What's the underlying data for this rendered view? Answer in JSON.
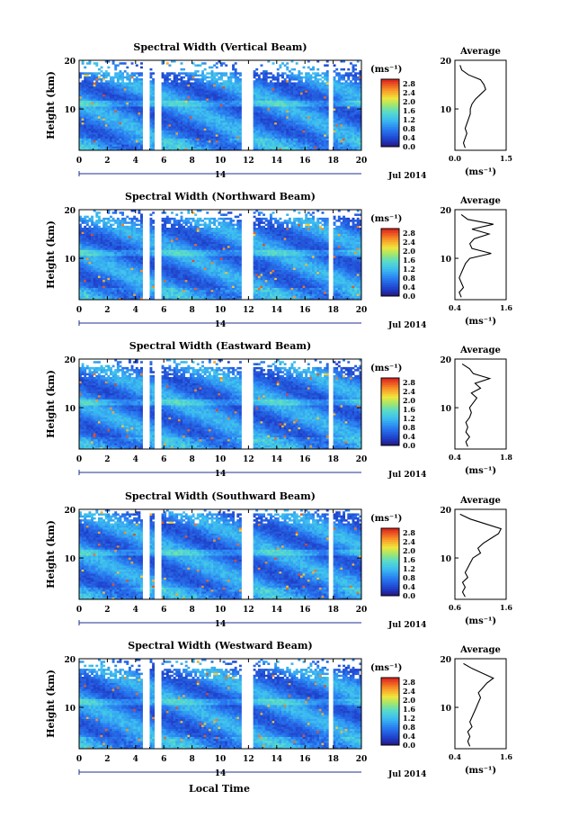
{
  "figure": {
    "date_label": "Jul 2014",
    "day_label": "14",
    "xlabel": "Local Time"
  },
  "chart_data": [
    {
      "type": "heatmap",
      "title": "Spectral Width (Vertical Beam)",
      "ylabel": "Height (km)",
      "x_ticks": [
        0,
        2,
        4,
        6,
        8,
        10,
        12,
        14,
        16,
        18,
        20
      ],
      "y_ticks": [
        10,
        20
      ],
      "xlim": [
        0,
        20
      ],
      "ylim": [
        1.5,
        20
      ],
      "colorbar": {
        "unit": "(ms⁻¹)",
        "ticks": [
          "0.0",
          "0.4",
          "0.8",
          "1.2",
          "1.6",
          "2.0",
          "2.4",
          "2.8"
        ],
        "range": [
          0,
          3.0
        ]
      },
      "data_gaps": [
        [
          4.5,
          5.0
        ],
        [
          5.4,
          5.9
        ],
        [
          11.5,
          12.3
        ],
        [
          17.6,
          18.0
        ]
      ],
      "top_limit_km": 17.5,
      "profile": {
        "title": "Average",
        "xlim": [
          0.0,
          1.5
        ],
        "x_ticks": [
          "0.0",
          "1.5"
        ],
        "xlabel": "(ms⁻¹)",
        "heights": [
          2,
          3,
          4,
          5,
          6,
          7,
          8,
          9,
          10,
          11,
          12,
          13,
          14,
          15,
          16,
          17,
          18,
          19
        ],
        "values": [
          0.3,
          0.25,
          0.3,
          0.35,
          0.3,
          0.35,
          0.4,
          0.45,
          0.45,
          0.5,
          0.6,
          0.75,
          0.9,
          0.85,
          0.75,
          0.4,
          0.2,
          0.15
        ]
      }
    },
    {
      "type": "heatmap",
      "title": "Spectral Width (Northward Beam)",
      "ylabel": "Height (km)",
      "x_ticks": [
        0,
        2,
        4,
        6,
        8,
        10,
        12,
        14,
        16,
        18,
        20
      ],
      "y_ticks": [
        10,
        20
      ],
      "xlim": [
        0,
        20
      ],
      "ylim": [
        1.5,
        20
      ],
      "colorbar": {
        "unit": "(ms⁻¹)",
        "ticks": [
          "0.0",
          "0.4",
          "0.8",
          "1.2",
          "1.6",
          "2.0",
          "2.4",
          "2.8"
        ],
        "range": [
          0,
          3.0
        ]
      },
      "data_gaps": [
        [
          4.5,
          5.0
        ],
        [
          5.4,
          5.9
        ],
        [
          11.5,
          12.3
        ],
        [
          17.6,
          18.0
        ]
      ],
      "top_limit_km": 18.5,
      "profile": {
        "title": "Average",
        "xlim": [
          0.4,
          1.6
        ],
        "x_ticks": [
          "0.4",
          "1.6"
        ],
        "xlabel": "(ms⁻¹)",
        "heights": [
          2,
          3,
          4,
          5,
          6,
          7,
          8,
          9,
          10,
          11,
          12,
          13,
          14,
          15,
          16,
          17,
          18,
          19
        ],
        "values": [
          0.55,
          0.5,
          0.6,
          0.55,
          0.5,
          0.55,
          0.6,
          0.65,
          0.75,
          1.25,
          0.8,
          0.75,
          0.85,
          1.2,
          0.8,
          1.3,
          0.7,
          0.55
        ]
      }
    },
    {
      "type": "heatmap",
      "title": "Spectral Width (Eastward Beam)",
      "ylabel": "Height (km)",
      "x_ticks": [
        0,
        2,
        4,
        6,
        8,
        10,
        12,
        14,
        16,
        18,
        20
      ],
      "y_ticks": [
        10,
        20
      ],
      "xlim": [
        0,
        20
      ],
      "ylim": [
        1.5,
        20
      ],
      "colorbar": {
        "unit": "(ms⁻¹)",
        "ticks": [
          "0.0",
          "0.4",
          "0.8",
          "1.2",
          "1.6",
          "2.0",
          "2.4",
          "2.8"
        ],
        "range": [
          0,
          3.0
        ]
      },
      "data_gaps": [
        [
          4.5,
          5.0
        ],
        [
          5.4,
          5.9
        ],
        [
          11.5,
          12.3
        ],
        [
          17.6,
          18.0
        ]
      ],
      "top_limit_km": 18.5,
      "profile": {
        "title": "Average",
        "xlim": [
          0.4,
          1.8
        ],
        "x_ticks": [
          "0.4",
          "1.8"
        ],
        "xlabel": "(ms⁻¹)",
        "heights": [
          2,
          3,
          4,
          5,
          6,
          7,
          8,
          9,
          10,
          11,
          12,
          13,
          14,
          15,
          16,
          17,
          18,
          19
        ],
        "values": [
          0.75,
          0.7,
          0.8,
          0.7,
          0.75,
          0.7,
          0.8,
          0.85,
          0.8,
          0.9,
          1.0,
          0.85,
          1.1,
          0.95,
          1.35,
          0.9,
          0.8,
          0.6
        ]
      }
    },
    {
      "type": "heatmap",
      "title": "Spectral Width (Southward Beam)",
      "ylabel": "Height (km)",
      "x_ticks": [
        0,
        2,
        4,
        6,
        8,
        10,
        12,
        14,
        16,
        18,
        20
      ],
      "y_ticks": [
        10,
        20
      ],
      "xlim": [
        0,
        20
      ],
      "ylim": [
        1.5,
        20
      ],
      "colorbar": {
        "unit": "(ms⁻¹)",
        "ticks": [
          "0.0",
          "0.4",
          "0.8",
          "1.2",
          "1.6",
          "2.0",
          "2.4",
          "2.8"
        ],
        "range": [
          0,
          3.0
        ]
      },
      "data_gaps": [
        [
          4.5,
          5.0
        ],
        [
          5.4,
          5.9
        ],
        [
          11.5,
          12.3
        ],
        [
          17.6,
          18.0
        ]
      ],
      "top_limit_km": 19.0,
      "profile": {
        "title": "Average",
        "xlim": [
          0.6,
          1.6
        ],
        "x_ticks": [
          "0.6",
          "1.6"
        ],
        "xlabel": "(ms⁻¹)",
        "heights": [
          2,
          3,
          4,
          5,
          6,
          7,
          8,
          9,
          10,
          11,
          12,
          13,
          14,
          15,
          16,
          17,
          18,
          19
        ],
        "values": [
          0.8,
          0.75,
          0.8,
          0.75,
          0.85,
          0.8,
          0.85,
          0.9,
          0.95,
          1.1,
          1.05,
          1.15,
          1.3,
          1.45,
          1.5,
          1.2,
          0.9,
          0.7
        ]
      }
    },
    {
      "type": "heatmap",
      "title": "Spectral Width (Westward Beam)",
      "ylabel": "Height (km)",
      "x_ticks": [
        0,
        2,
        4,
        6,
        8,
        10,
        12,
        14,
        16,
        18,
        20
      ],
      "y_ticks": [
        10,
        20
      ],
      "xlim": [
        0,
        20
      ],
      "ylim": [
        1.5,
        20
      ],
      "colorbar": {
        "unit": "(ms⁻¹)",
        "ticks": [
          "0.0",
          "0.4",
          "0.8",
          "1.2",
          "1.6",
          "2.0",
          "2.4",
          "2.8"
        ],
        "range": [
          0,
          3.0
        ]
      },
      "data_gaps": [
        [
          4.5,
          5.0
        ],
        [
          5.4,
          5.9
        ],
        [
          11.5,
          12.3
        ],
        [
          17.6,
          18.0
        ]
      ],
      "top_limit_km": 18.0,
      "profile": {
        "title": "Average",
        "xlim": [
          0.4,
          1.6
        ],
        "x_ticks": [
          "0.4",
          "1.6"
        ],
        "xlabel": "(ms⁻¹)",
        "heights": [
          2,
          3,
          4,
          5,
          6,
          7,
          8,
          9,
          10,
          11,
          12,
          13,
          14,
          15,
          16,
          17,
          18,
          19
        ],
        "values": [
          0.75,
          0.7,
          0.75,
          0.7,
          0.8,
          0.75,
          0.8,
          0.85,
          0.9,
          0.95,
          1.0,
          0.95,
          1.05,
          1.15,
          1.3,
          1.05,
          0.8,
          0.6
        ]
      }
    }
  ]
}
